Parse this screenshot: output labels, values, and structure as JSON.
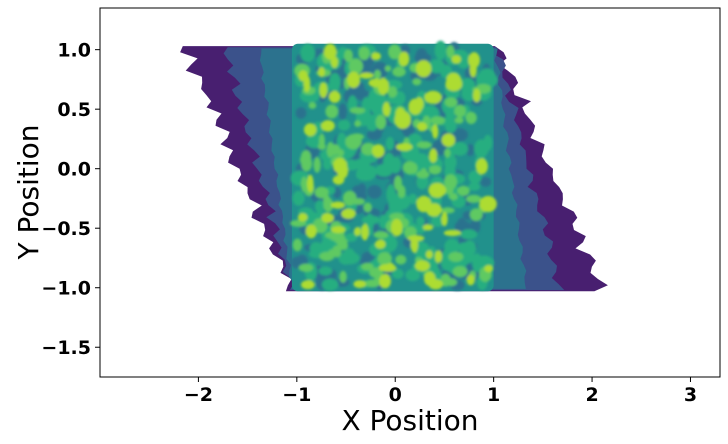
{
  "chart_data": {
    "type": "contour",
    "title": "",
    "xlabel": "X Position",
    "ylabel": "Y Position",
    "xlim": [
      -3.0,
      3.3
    ],
    "ylim": [
      -1.75,
      1.35
    ],
    "xticks": [
      -2,
      -1,
      0,
      1,
      2,
      3
    ],
    "yticks": [
      -1.5,
      -1.0,
      -0.5,
      0.0,
      0.5,
      1.0
    ],
    "xtick_labels": [
      "−2",
      "−1",
      "0",
      "1",
      "2",
      "3"
    ],
    "ytick_labels": [
      "−1.5",
      "−1.0",
      "−0.5",
      "0.0",
      "0.5",
      "1.0"
    ],
    "grid": false,
    "colormap": "viridis",
    "level_colors": [
      "#481f70",
      "#3b528b",
      "#2c728e",
      "#21918c",
      "#28ae80",
      "#5ec962",
      "#addc30"
    ],
    "core_region": {
      "x": [
        -1.05,
        1.0
      ],
      "y": [
        -1.03,
        1.05
      ]
    },
    "outer_region": {
      "top_edge_y": 1.03,
      "bottom_edge_y": -1.03,
      "left_x_at_top": -2.15,
      "left_x_at_bottom": -1.05,
      "right_x_at_top": 1.05,
      "right_x_at_bottom": 2.1
    }
  }
}
